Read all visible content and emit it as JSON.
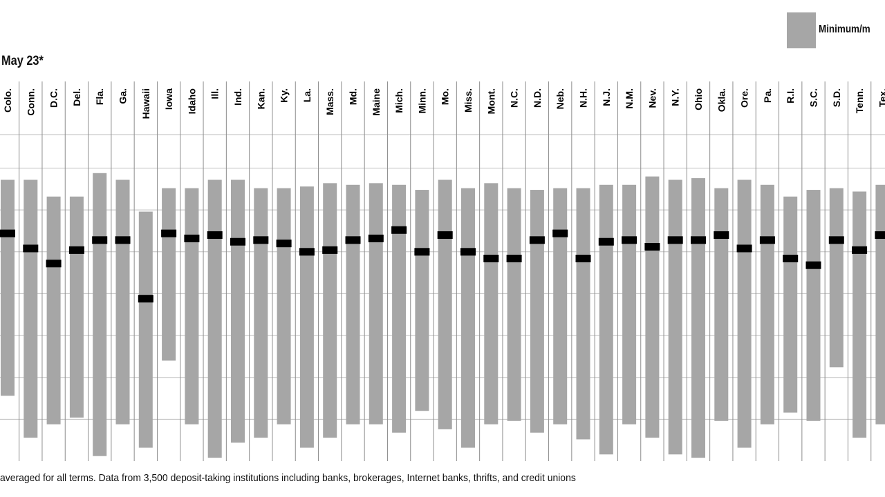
{
  "chart_data": {
    "type": "range",
    "subtitle": "May 23*",
    "legend": [
      {
        "label": "Minimum/m",
        "color": "#a6a6a6"
      }
    ],
    "categories": [
      "Colo.",
      "Conn.",
      "D.C.",
      "Del.",
      "Fla.",
      "Ga.",
      "Hawaii",
      "Iowa",
      "Idaho",
      "Ill.",
      "Ind.",
      "Kan.",
      "Ky.",
      "La.",
      "Mass.",
      "Md.",
      "Maine",
      "Mich.",
      "Minn.",
      "Mo.",
      "Miss.",
      "Mont.",
      "N.C.",
      "N.D.",
      "Neb.",
      "N.H.",
      "N.J.",
      "N.M.",
      "Nev.",
      "N.Y.",
      "Ohio",
      "Okla.",
      "Ore.",
      "Pa.",
      "R.I.",
      "S.C.",
      "S.D.",
      "Tenn.",
      "Tex."
    ],
    "min": [
      0.39,
      0.14,
      0.22,
      0.26,
      0.03,
      0.22,
      0.08,
      0.6,
      0.22,
      0.02,
      0.11,
      0.14,
      0.22,
      0.08,
      0.14,
      0.22,
      0.22,
      0.17,
      0.3,
      0.19,
      0.08,
      0.22,
      0.24,
      0.17,
      0.22,
      0.13,
      0.04,
      0.22,
      0.14,
      0.04,
      0.02,
      0.24,
      0.08,
      0.22,
      0.29,
      0.24,
      0.56,
      0.14,
      0.22
    ],
    "avg": [
      1.36,
      1.27,
      1.18,
      1.26,
      1.32,
      1.32,
      0.97,
      1.36,
      1.33,
      1.35,
      1.31,
      1.32,
      1.3,
      1.25,
      1.26,
      1.32,
      1.33,
      1.38,
      1.25,
      1.35,
      1.25,
      1.21,
      1.21,
      1.32,
      1.36,
      1.21,
      1.31,
      1.32,
      1.28,
      1.32,
      1.32,
      1.35,
      1.27,
      1.32,
      1.21,
      1.17,
      1.32,
      1.26,
      1.35
    ],
    "max": [
      1.68,
      1.68,
      1.58,
      1.58,
      1.72,
      1.68,
      1.49,
      1.63,
      1.63,
      1.68,
      1.68,
      1.63,
      1.63,
      1.64,
      1.66,
      1.65,
      1.66,
      1.65,
      1.62,
      1.68,
      1.63,
      1.66,
      1.63,
      1.62,
      1.63,
      1.63,
      1.65,
      1.65,
      1.7,
      1.68,
      1.69,
      1.63,
      1.68,
      1.65,
      1.58,
      1.62,
      1.63,
      1.61,
      1.65
    ],
    "ylim": [
      0,
      1.95
    ],
    "grid": true,
    "footnote": "averaged for all terms. Data from 3,500 deposit-taking institutions including banks, brokerages, Internet banks, thrifts, and credit unions"
  }
}
